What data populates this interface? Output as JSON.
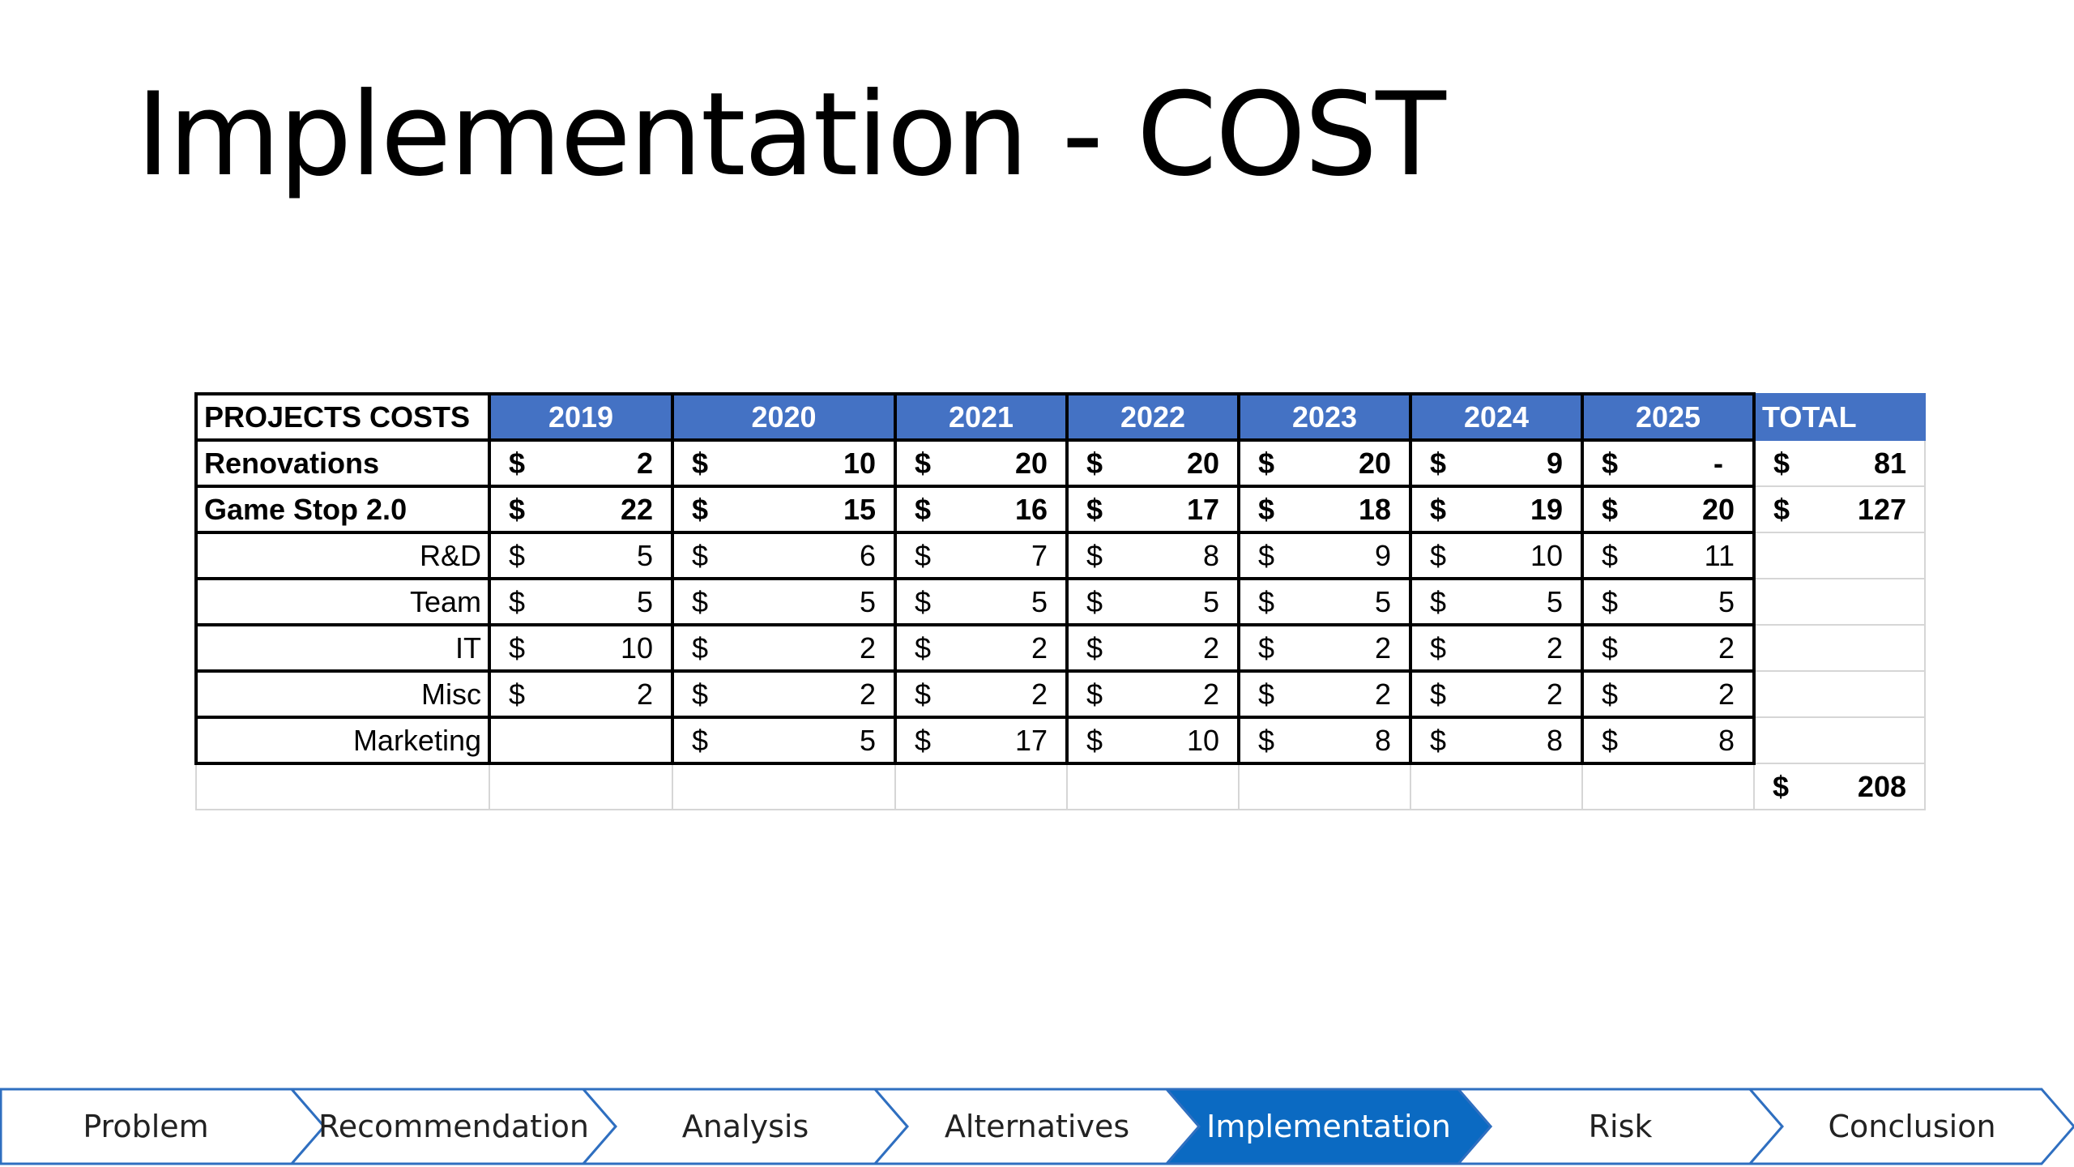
{
  "slide": {
    "title": "Implementation - COST"
  },
  "table": {
    "corner_label": "PROJECTS COSTS",
    "years": [
      "2019",
      "2020",
      "2021",
      "2022",
      "2023",
      "2024",
      "2025"
    ],
    "total_label": "TOTAL",
    "currency": "$",
    "rows": [
      {
        "label": "Renovations",
        "bold": true,
        "values": [
          "2",
          "10",
          "20",
          "20",
          "20",
          "9",
          "-"
        ],
        "total": "81"
      },
      {
        "label": "Game Stop 2.0",
        "bold": true,
        "values": [
          "22",
          "15",
          "16",
          "17",
          "18",
          "19",
          "20"
        ],
        "total": "127"
      },
      {
        "label": "R&D",
        "bold": false,
        "values": [
          "5",
          "6",
          "7",
          "8",
          "9",
          "10",
          "11"
        ],
        "total": ""
      },
      {
        "label": "Team",
        "bold": false,
        "values": [
          "5",
          "5",
          "5",
          "5",
          "5",
          "5",
          "5"
        ],
        "total": ""
      },
      {
        "label": "IT",
        "bold": false,
        "values": [
          "10",
          "2",
          "2",
          "2",
          "2",
          "2",
          "2"
        ],
        "total": ""
      },
      {
        "label": "Misc",
        "bold": false,
        "values": [
          "2",
          "2",
          "2",
          "2",
          "2",
          "2",
          "2"
        ],
        "total": ""
      },
      {
        "label": "Marketing",
        "bold": false,
        "values": [
          "",
          "5",
          "17",
          "10",
          "8",
          "8",
          "8"
        ],
        "total": ""
      }
    ],
    "grand_total": "208"
  },
  "process_bar": {
    "active_index": 4,
    "active_color": "#0b6ac2",
    "outline_color": "#2f6fc0",
    "steps": [
      "Problem",
      "Recommendation",
      "Analysis",
      "Alternatives",
      "Implementation",
      "Risk",
      "Conclusion"
    ]
  }
}
